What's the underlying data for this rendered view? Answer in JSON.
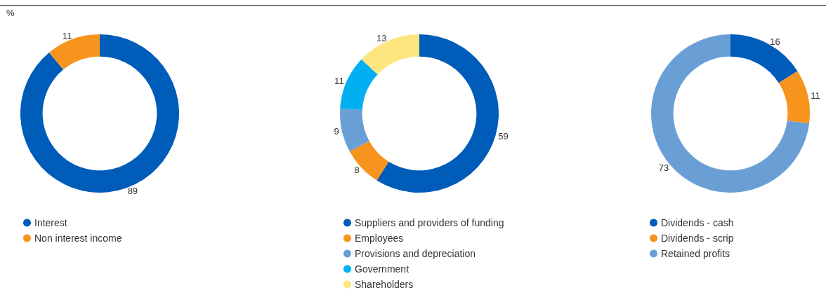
{
  "chart_data": [
    {
      "type": "donut",
      "categories": [
        "Interest",
        "Non interest income"
      ],
      "values": [
        89,
        11
      ],
      "colors": [
        "#005cb9",
        "#f7941d"
      ],
      "data_labels": true,
      "legend": "bottom",
      "annotations": [
        "%"
      ]
    },
    {
      "type": "donut",
      "categories": [
        "Suppliers and providers of funding",
        "Employees",
        "Provisions and depreciation",
        "Government",
        "Shareholders"
      ],
      "values": [
        59,
        8,
        9,
        11,
        13
      ],
      "colors": [
        "#005cb9",
        "#f7941d",
        "#6a9fd6",
        "#00b0f0",
        "#ffe57f"
      ],
      "data_labels": true,
      "legend": "bottom"
    },
    {
      "type": "donut",
      "categories": [
        "Dividends - cash",
        "Dividends - scrip",
        "Retained profits"
      ],
      "values": [
        16,
        11,
        73
      ],
      "colors": [
        "#005cb9",
        "#f7941d",
        "#6a9fd6"
      ],
      "data_labels": true,
      "legend": "bottom"
    }
  ]
}
